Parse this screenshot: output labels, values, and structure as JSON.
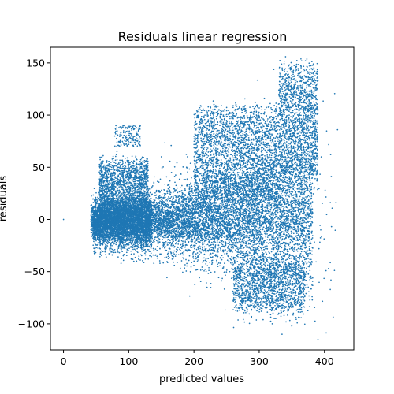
{
  "chart_data": {
    "type": "scatter",
    "title": "Residuals linear regression",
    "xlabel": "predicted values",
    "ylabel": "residuals",
    "xlim": [
      -20,
      445
    ],
    "ylim": [
      -125,
      165
    ],
    "xticks": [
      0,
      100,
      200,
      300,
      400
    ],
    "yticks": [
      -100,
      -50,
      0,
      50,
      100,
      150
    ],
    "grid": false,
    "color": "#1f77b4",
    "marker": "point",
    "point_count_estimate": "tens of thousands (dense cloud)",
    "series": [
      {
        "values_sample": [
          {
            "x": 0,
            "y": 0
          },
          {
            "x": 45,
            "y": 0
          },
          {
            "x": 60,
            "y": 40
          },
          {
            "x": 80,
            "y": 82
          },
          {
            "x": 95,
            "y": 88
          },
          {
            "x": 100,
            "y": -30
          },
          {
            "x": 130,
            "y": -38
          },
          {
            "x": 150,
            "y": 60
          },
          {
            "x": 190,
            "y": 60
          },
          {
            "x": 200,
            "y": -40
          },
          {
            "x": 220,
            "y": -65
          },
          {
            "x": 230,
            "y": 100
          },
          {
            "x": 260,
            "y": 100
          },
          {
            "x": 300,
            "y": -50
          },
          {
            "x": 320,
            "y": -100
          },
          {
            "x": 335,
            "y": -110
          },
          {
            "x": 340,
            "y": 120
          },
          {
            "x": 365,
            "y": 152
          },
          {
            "x": 375,
            "y": 140
          },
          {
            "x": 390,
            "y": -115
          },
          {
            "x": 410,
            "y": -58
          },
          {
            "x": 420,
            "y": 86
          }
        ]
      }
    ]
  }
}
